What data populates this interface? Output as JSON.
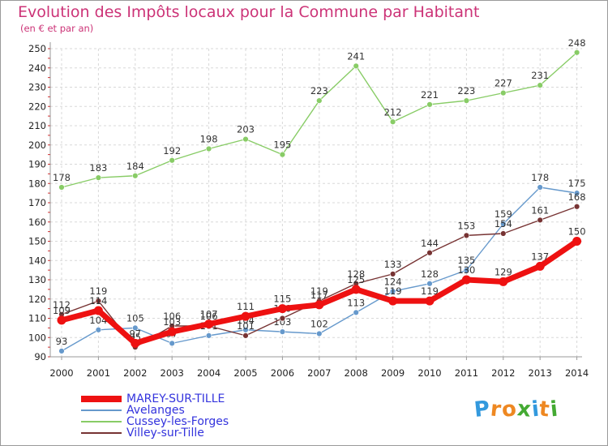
{
  "title": "Evolution des Impôts locaux pour la Commune par Habitant",
  "subtitle": "(en € et par an)",
  "logo": {
    "letters": [
      "P",
      "r",
      "o",
      "x",
      "i",
      "t",
      "i"
    ],
    "colors": [
      "#3399dd",
      "#ee8822",
      "#ee8822",
      "#44aa33",
      "#3399dd",
      "#ee8822",
      "#44aa33"
    ]
  },
  "chart_data": {
    "type": "line",
    "x": [
      "2000",
      "2001",
      "2002",
      "2003",
      "2004",
      "2005",
      "2006",
      "2007",
      "2008",
      "2009",
      "2010",
      "2011",
      "2012",
      "2013",
      "2014"
    ],
    "ylim": [
      90,
      250
    ],
    "yticks": [
      90,
      100,
      110,
      120,
      130,
      140,
      150,
      160,
      170,
      180,
      190,
      200,
      210,
      220,
      230,
      240,
      250
    ],
    "grid": true,
    "legend_position": "bottom-left",
    "series": [
      {
        "name": "MAREY-SUR-TILLE",
        "color": "#ee1111",
        "values": [
          109,
          114,
          97,
          103,
          107,
          111,
          115,
          117,
          125,
          119,
          119,
          130,
          129,
          137,
          150
        ]
      },
      {
        "name": "Avelanges",
        "color": "#6699cc",
        "values": [
          93,
          104,
          105,
          97,
          101,
          104,
          103,
          102,
          113,
          124,
          128,
          135,
          159,
          178,
          175
        ]
      },
      {
        "name": "Cussey-les-Forges",
        "color": "#88cc66",
        "values": [
          178,
          183,
          184,
          192,
          198,
          203,
          195,
          223,
          241,
          212,
          221,
          223,
          227,
          231,
          248
        ]
      },
      {
        "name": "Villey-sur-Tille",
        "color": "#773333",
        "values": [
          112,
          119,
          95,
          106,
          106,
          101,
          110,
          119,
          128,
          133,
          144,
          153,
          154,
          161,
          168
        ]
      }
    ]
  }
}
